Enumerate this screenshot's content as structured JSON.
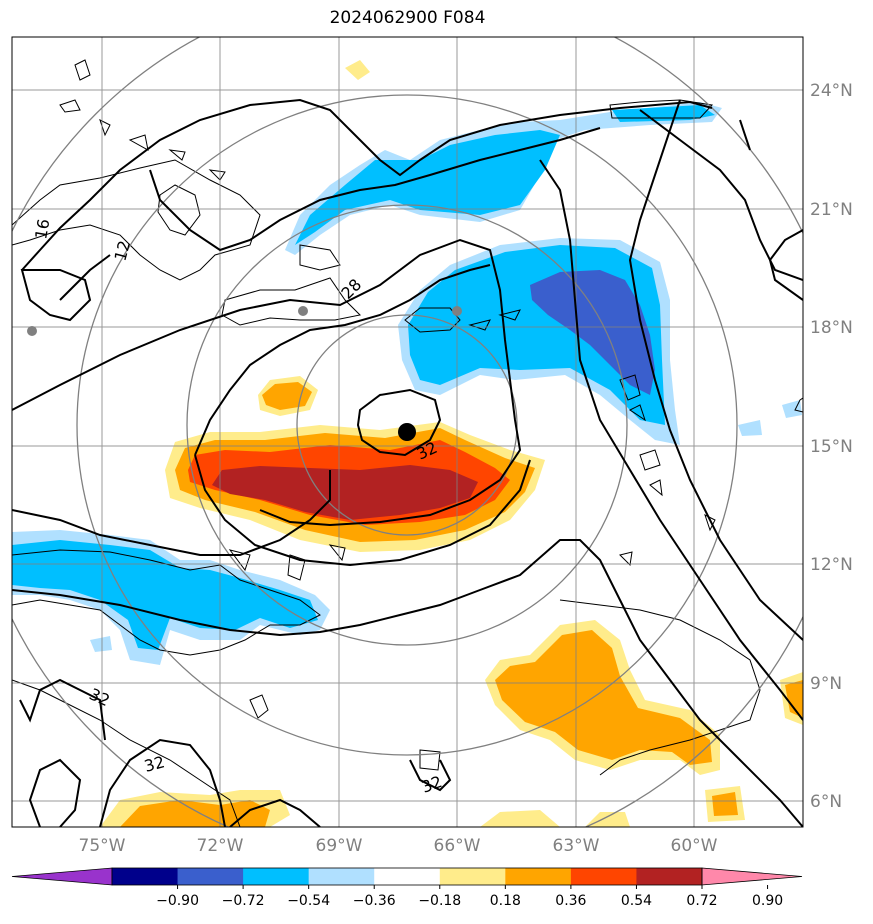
{
  "title": "2024062900 F084",
  "map": {
    "lat_ticks": [
      "24°N",
      "21°N",
      "18°N",
      "15°N",
      "12°N",
      "9°N",
      "6°N"
    ],
    "lon_ticks": [
      "75°W",
      "72°W",
      "69°W",
      "66°W",
      "63°W",
      "60°W"
    ],
    "contour_labels": [
      "16",
      "12",
      "28",
      "32",
      "32",
      "32",
      "32"
    ],
    "storm_center": {
      "lat": 15.4,
      "lon": -67.5
    },
    "colors": {
      "grid": "#808080",
      "range_rings": "#808080",
      "contour": "#000000",
      "coast": "#000000",
      "marker": "#000000",
      "station": "#808080"
    }
  },
  "colorbar": {
    "levels": [
      "−0.90",
      "−0.72",
      "−0.54",
      "−0.36",
      "−0.18",
      "0.18",
      "0.36",
      "0.54",
      "0.72",
      "0.90"
    ],
    "colors": [
      "#9933cc",
      "#00008b",
      "#3a5fcd",
      "#00bfff",
      "#b0e0ff",
      "#ffffff",
      "#ffec8b",
      "#ffa500",
      "#ff4500",
      "#b22222",
      "#ff88aa"
    ]
  }
}
